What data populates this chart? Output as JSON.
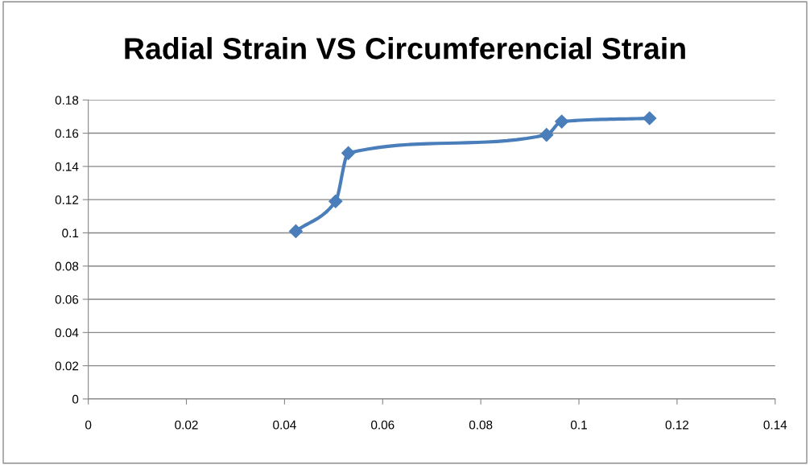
{
  "chart_data": {
    "type": "line",
    "title": "Radial Strain VS Circumferencial Strain",
    "x": [
      0.0423,
      0.0504,
      0.053,
      0.0934,
      0.0965,
      0.1144
    ],
    "series": [
      {
        "color": "#4a7ebb",
        "values": [
          0.101,
          0.119,
          0.148,
          0.159,
          0.167,
          0.169
        ]
      }
    ],
    "xlim": [
      0,
      0.14
    ],
    "xticks": [
      0,
      0.02,
      0.04,
      0.06,
      0.08,
      0.1,
      0.12,
      0.14
    ],
    "ylim": [
      0,
      0.18
    ],
    "yticks": [
      0,
      0.02,
      0.04,
      0.06,
      0.08,
      0.1,
      0.12,
      0.14,
      0.16,
      0.18
    ],
    "grid": "y",
    "marker": "diamond",
    "line_style": "solid",
    "legend": false
  }
}
